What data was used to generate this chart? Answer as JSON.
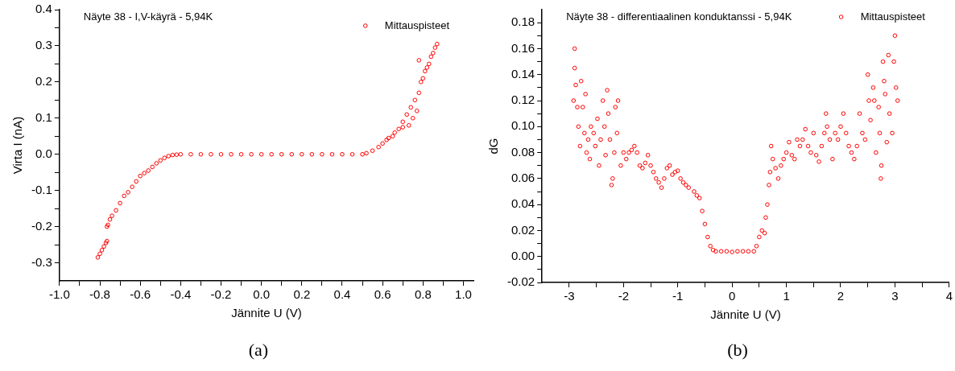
{
  "chart_data": [
    {
      "type": "scatter",
      "title": "Näyte 38 - I,V-käyrä - 5,94K",
      "xlabel": "Jännite U (V)",
      "ylabel": "Virta I (nA)",
      "annotations": [
        "(a)"
      ],
      "legend": "top right",
      "marker": "circle",
      "xlim": [
        -1,
        1.05
      ],
      "ylim": [
        -0.35,
        0.4
      ],
      "xticks": [
        {
          "value": -1,
          "label": "-1.0"
        },
        {
          "value": -0.9,
          "label": null
        },
        {
          "value": -0.8,
          "label": "-0.8"
        },
        {
          "value": -0.7,
          "label": null
        },
        {
          "value": -0.6,
          "label": "-0.6"
        },
        {
          "value": -0.5,
          "label": null
        },
        {
          "value": -0.4,
          "label": "-0.4"
        },
        {
          "value": -0.3,
          "label": null
        },
        {
          "value": -0.2,
          "label": "-0.2"
        },
        {
          "value": -0.1,
          "label": null
        },
        {
          "value": 0,
          "label": "0.0"
        },
        {
          "value": 0.1,
          "label": null
        },
        {
          "value": 0.2,
          "label": "0.2"
        },
        {
          "value": 0.3,
          "label": null
        },
        {
          "value": 0.4,
          "label": "0.4"
        },
        {
          "value": 0.5,
          "label": null
        },
        {
          "value": 0.6,
          "label": "0.6"
        },
        {
          "value": 0.7,
          "label": null
        },
        {
          "value": 0.8,
          "label": "0.8"
        },
        {
          "value": 0.9,
          "label": null
        },
        {
          "value": 1,
          "label": "1.0"
        }
      ],
      "yticks": [
        {
          "value": -0.3,
          "label": "-0.3"
        },
        {
          "value": -0.25,
          "label": null
        },
        {
          "value": -0.2,
          "label": "-0.2"
        },
        {
          "value": -0.15,
          "label": null
        },
        {
          "value": -0.1,
          "label": "-0.1"
        },
        {
          "value": -0.05,
          "label": null
        },
        {
          "value": 0,
          "label": "0.0"
        },
        {
          "value": 0.05,
          "label": null
        },
        {
          "value": 0.1,
          "label": "0.1"
        },
        {
          "value": 0.15,
          "label": null
        },
        {
          "value": 0.2,
          "label": "0.2"
        },
        {
          "value": 0.25,
          "label": null
        },
        {
          "value": 0.3,
          "label": "0.3"
        },
        {
          "value": 0.35,
          "label": null
        },
        {
          "value": 0.4,
          "label": "0.4"
        }
      ],
      "series": [
        {
          "name": "Mittauspisteet",
          "color": "#ff0000",
          "x": [
            -0.81,
            -0.8,
            -0.79,
            -0.78,
            -0.77,
            -0.765,
            -0.765,
            -0.76,
            -0.75,
            -0.74,
            -0.72,
            -0.7,
            -0.68,
            -0.66,
            -0.64,
            -0.62,
            -0.6,
            -0.58,
            -0.56,
            -0.54,
            -0.52,
            -0.5,
            -0.48,
            -0.46,
            -0.44,
            -0.42,
            -0.4,
            -0.35,
            -0.3,
            -0.25,
            -0.2,
            -0.15,
            -0.1,
            -0.05,
            0,
            0.05,
            0.1,
            0.15,
            0.2,
            0.25,
            0.3,
            0.35,
            0.4,
            0.45,
            0.5,
            0.52,
            0.55,
            0.58,
            0.6,
            0.62,
            0.63,
            0.65,
            0.66,
            0.68,
            0.7,
            0.7,
            0.72,
            0.73,
            0.74,
            0.75,
            0.76,
            0.77,
            0.78,
            0.78,
            0.79,
            0.8,
            0.81,
            0.82,
            0.83,
            0.84,
            0.85,
            0.86,
            0.87
          ],
          "values": [
            -0.285,
            -0.275,
            -0.265,
            -0.255,
            -0.245,
            -0.24,
            -0.2,
            -0.195,
            -0.18,
            -0.17,
            -0.155,
            -0.135,
            -0.115,
            -0.105,
            -0.09,
            -0.075,
            -0.06,
            -0.052,
            -0.045,
            -0.035,
            -0.025,
            -0.017,
            -0.01,
            -0.005,
            -0.002,
            -0.001,
            0,
            0,
            0,
            0,
            0,
            0,
            0,
            0,
            0,
            0,
            0,
            0,
            0,
            0,
            0,
            0,
            0,
            0,
            0,
            0.003,
            0.01,
            0.02,
            0.03,
            0.04,
            0.045,
            0.05,
            0.06,
            0.07,
            0.075,
            0.09,
            0.11,
            0.08,
            0.13,
            0.1,
            0.15,
            0.12,
            0.26,
            0.17,
            0.2,
            0.21,
            0.23,
            0.24,
            0.25,
            0.27,
            0.28,
            0.295,
            0.305
          ]
        }
      ]
    },
    {
      "type": "scatter",
      "title": "Näyte 38 - differentiaalinen konduktanssi - 5,94K",
      "xlabel": "Jännite U (V)",
      "ylabel": "dG",
      "annotations": [
        "(b)"
      ],
      "legend": "top right",
      "marker": "circle",
      "xlim": [
        -3.5,
        4
      ],
      "ylim": [
        -0.02,
        0.19
      ],
      "xticks": [
        {
          "value": -3,
          "label": "-3"
        },
        {
          "value": -2.5,
          "label": null
        },
        {
          "value": -2,
          "label": "-2"
        },
        {
          "value": -1.5,
          "label": null
        },
        {
          "value": -1,
          "label": "-1"
        },
        {
          "value": -0.5,
          "label": null
        },
        {
          "value": 0,
          "label": "0"
        },
        {
          "value": 0.5,
          "label": null
        },
        {
          "value": 1,
          "label": "1"
        },
        {
          "value": 1.5,
          "label": null
        },
        {
          "value": 2,
          "label": "2"
        },
        {
          "value": 2.5,
          "label": null
        },
        {
          "value": 3,
          "label": "3"
        },
        {
          "value": 3.5,
          "label": null
        },
        {
          "value": 4,
          "label": "4"
        }
      ],
      "yticks": [
        {
          "value": -0.02,
          "label": "-0.02"
        },
        {
          "value": -0.01,
          "label": null
        },
        {
          "value": 0,
          "label": "0.00"
        },
        {
          "value": 0.01,
          "label": null
        },
        {
          "value": 0.02,
          "label": "0.02"
        },
        {
          "value": 0.03,
          "label": null
        },
        {
          "value": 0.04,
          "label": "0.04"
        },
        {
          "value": 0.05,
          "label": null
        },
        {
          "value": 0.06,
          "label": "0.06"
        },
        {
          "value": 0.07,
          "label": null
        },
        {
          "value": 0.08,
          "label": "0.08"
        },
        {
          "value": 0.09,
          "label": null
        },
        {
          "value": 0.1,
          "label": "0.10"
        },
        {
          "value": 0.11,
          "label": null
        },
        {
          "value": 0.12,
          "label": "0.12"
        },
        {
          "value": 0.13,
          "label": null
        },
        {
          "value": 0.14,
          "label": "0.14"
        },
        {
          "value": 0.15,
          "label": null
        },
        {
          "value": 0.16,
          "label": "0.16"
        },
        {
          "value": 0.17,
          "label": null
        },
        {
          "value": 0.18,
          "label": "0.18"
        }
      ],
      "series": [
        {
          "name": "Mittauspisteet",
          "color": "#ff0000",
          "x": [
            -2.9,
            -2.9,
            -2.92,
            -2.88,
            -2.85,
            -2.83,
            -2.8,
            -2.78,
            -2.75,
            -2.72,
            -2.7,
            -2.68,
            -2.65,
            -2.62,
            -2.6,
            -2.55,
            -2.52,
            -2.48,
            -2.45,
            -2.42,
            -2.38,
            -2.35,
            -2.33,
            -2.3,
            -2.28,
            -2.25,
            -2.22,
            -2.2,
            -2.17,
            -2.15,
            -2.12,
            -2.1,
            -2.05,
            -2,
            -1.95,
            -1.9,
            -1.85,
            -1.8,
            -1.75,
            -1.7,
            -1.65,
            -1.6,
            -1.55,
            -1.5,
            -1.45,
            -1.4,
            -1.35,
            -1.3,
            -1.25,
            -1.2,
            -1.15,
            -1.1,
            -1.05,
            -1,
            -0.95,
            -0.9,
            -0.85,
            -0.8,
            -0.7,
            -0.65,
            -0.6,
            -0.55,
            -0.5,
            -0.45,
            -0.4,
            -0.35,
            -0.3,
            -0.2,
            -0.1,
            0,
            0.1,
            0.2,
            0.3,
            0.4,
            0.45,
            0.5,
            0.55,
            0.6,
            0.62,
            0.65,
            0.68,
            0.7,
            0.72,
            0.75,
            0.8,
            0.85,
            0.9,
            0.95,
            1,
            1.05,
            1.1,
            1.15,
            1.2,
            1.25,
            1.3,
            1.35,
            1.4,
            1.45,
            1.5,
            1.55,
            1.6,
            1.65,
            1.7,
            1.73,
            1.75,
            1.8,
            1.85,
            1.9,
            1.95,
            2,
            2.05,
            2.1,
            2.15,
            2.2,
            2.25,
            2.3,
            2.35,
            2.4,
            2.45,
            2.5,
            2.52,
            2.55,
            2.6,
            2.62,
            2.65,
            2.7,
            2.72,
            2.74,
            2.75,
            2.78,
            2.8,
            2.82,
            2.85,
            2.88,
            2.9,
            2.95,
            2.98,
            3,
            3.02,
            3.05
          ],
          "values": [
            0.16,
            0.145,
            0.12,
            0.132,
            0.115,
            0.1,
            0.085,
            0.135,
            0.115,
            0.095,
            0.125,
            0.08,
            0.09,
            0.075,
            0.1,
            0.095,
            0.085,
            0.106,
            0.07,
            0.09,
            0.12,
            0.1,
            0.078,
            0.128,
            0.11,
            0.09,
            0.055,
            0.06,
            0.08,
            0.115,
            0.095,
            0.12,
            0.07,
            0.08,
            0.075,
            0.08,
            0.082,
            0.085,
            0.08,
            0.07,
            0.068,
            0.072,
            0.078,
            0.07,
            0.065,
            0.06,
            0.057,
            0.053,
            0.06,
            0.068,
            0.07,
            0.063,
            0.065,
            0.066,
            0.06,
            0.057,
            0.055,
            0.053,
            0.05,
            0.047,
            0.045,
            0.035,
            0.025,
            0.015,
            0.008,
            0.005,
            0.004,
            0.004,
            0.004,
            0.0035,
            0.004,
            0.004,
            0.004,
            0.004,
            0.008,
            0.015,
            0.02,
            0.018,
            0.03,
            0.04,
            0.055,
            0.065,
            0.085,
            0.075,
            0.068,
            0.06,
            0.07,
            0.075,
            0.08,
            0.088,
            0.078,
            0.075,
            0.09,
            0.085,
            0.09,
            0.098,
            0.085,
            0.08,
            0.095,
            0.078,
            0.073,
            0.085,
            0.095,
            0.11,
            0.1,
            0.09,
            0.075,
            0.095,
            0.09,
            0.1,
            0.11,
            0.095,
            0.085,
            0.08,
            0.075,
            0.085,
            0.11,
            0.095,
            0.09,
            0.14,
            0.12,
            0.105,
            0.13,
            0.12,
            0.08,
            0.115,
            0.095,
            0.06,
            0.07,
            0.15,
            0.135,
            0.125,
            0.088,
            0.155,
            0.11,
            0.095,
            0.15,
            0.17,
            0.13,
            0.12
          ]
        }
      ]
    }
  ]
}
